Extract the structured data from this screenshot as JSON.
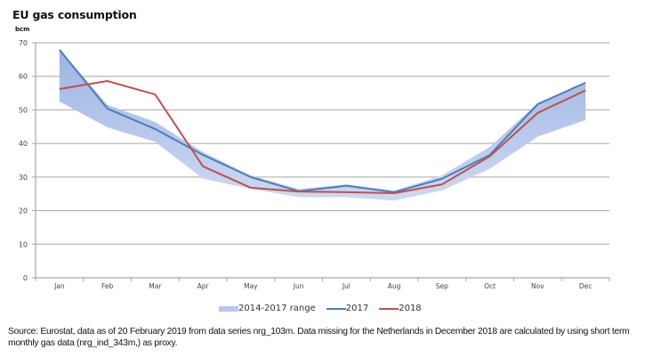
{
  "chart_data": {
    "type": "line",
    "title": "EU gas consumption",
    "ylabel": "bcm",
    "xlabel": "",
    "ylim": [
      0,
      70
    ],
    "yticks": [
      0,
      10,
      20,
      30,
      40,
      50,
      60,
      70
    ],
    "grid": true,
    "categories": [
      "Jan",
      "Feb",
      "Mar",
      "Apr",
      "May",
      "Jun",
      "Jul",
      "Aug",
      "Sep",
      "Oct",
      "Nov",
      "Dec"
    ],
    "range": {
      "name": "2014-2017 range",
      "color": "#b8c8ea",
      "upper": [
        68,
        51.5,
        46.4,
        37.5,
        30.5,
        26.5,
        27.8,
        26,
        30.5,
        39,
        52,
        58
      ],
      "lower": [
        52.5,
        44.8,
        40.5,
        29.5,
        26.5,
        24,
        24,
        23,
        26,
        32.5,
        42,
        47
      ]
    },
    "series": [
      {
        "name": "2017",
        "color": "#4a7ebb",
        "values": [
          67.9,
          50.4,
          44.3,
          36.6,
          30,
          25.8,
          27.4,
          25.5,
          29.5,
          36.6,
          51.7,
          58.1
        ]
      },
      {
        "name": "2018",
        "color": "#c0504d",
        "values": [
          56.2,
          58.6,
          54.6,
          33.2,
          26.8,
          25.7,
          25.5,
          25.2,
          27.8,
          36.2,
          49.1,
          55.8
        ]
      }
    ],
    "legend_position": "bottom"
  },
  "source_note": "Source: Eurostat, data as of 20 February 2019 from data series nrg_103m. Data missing for the Netherlands in December 2018 are calculated by using short term monthly gas data (nrg_ind_343m,) as proxy."
}
